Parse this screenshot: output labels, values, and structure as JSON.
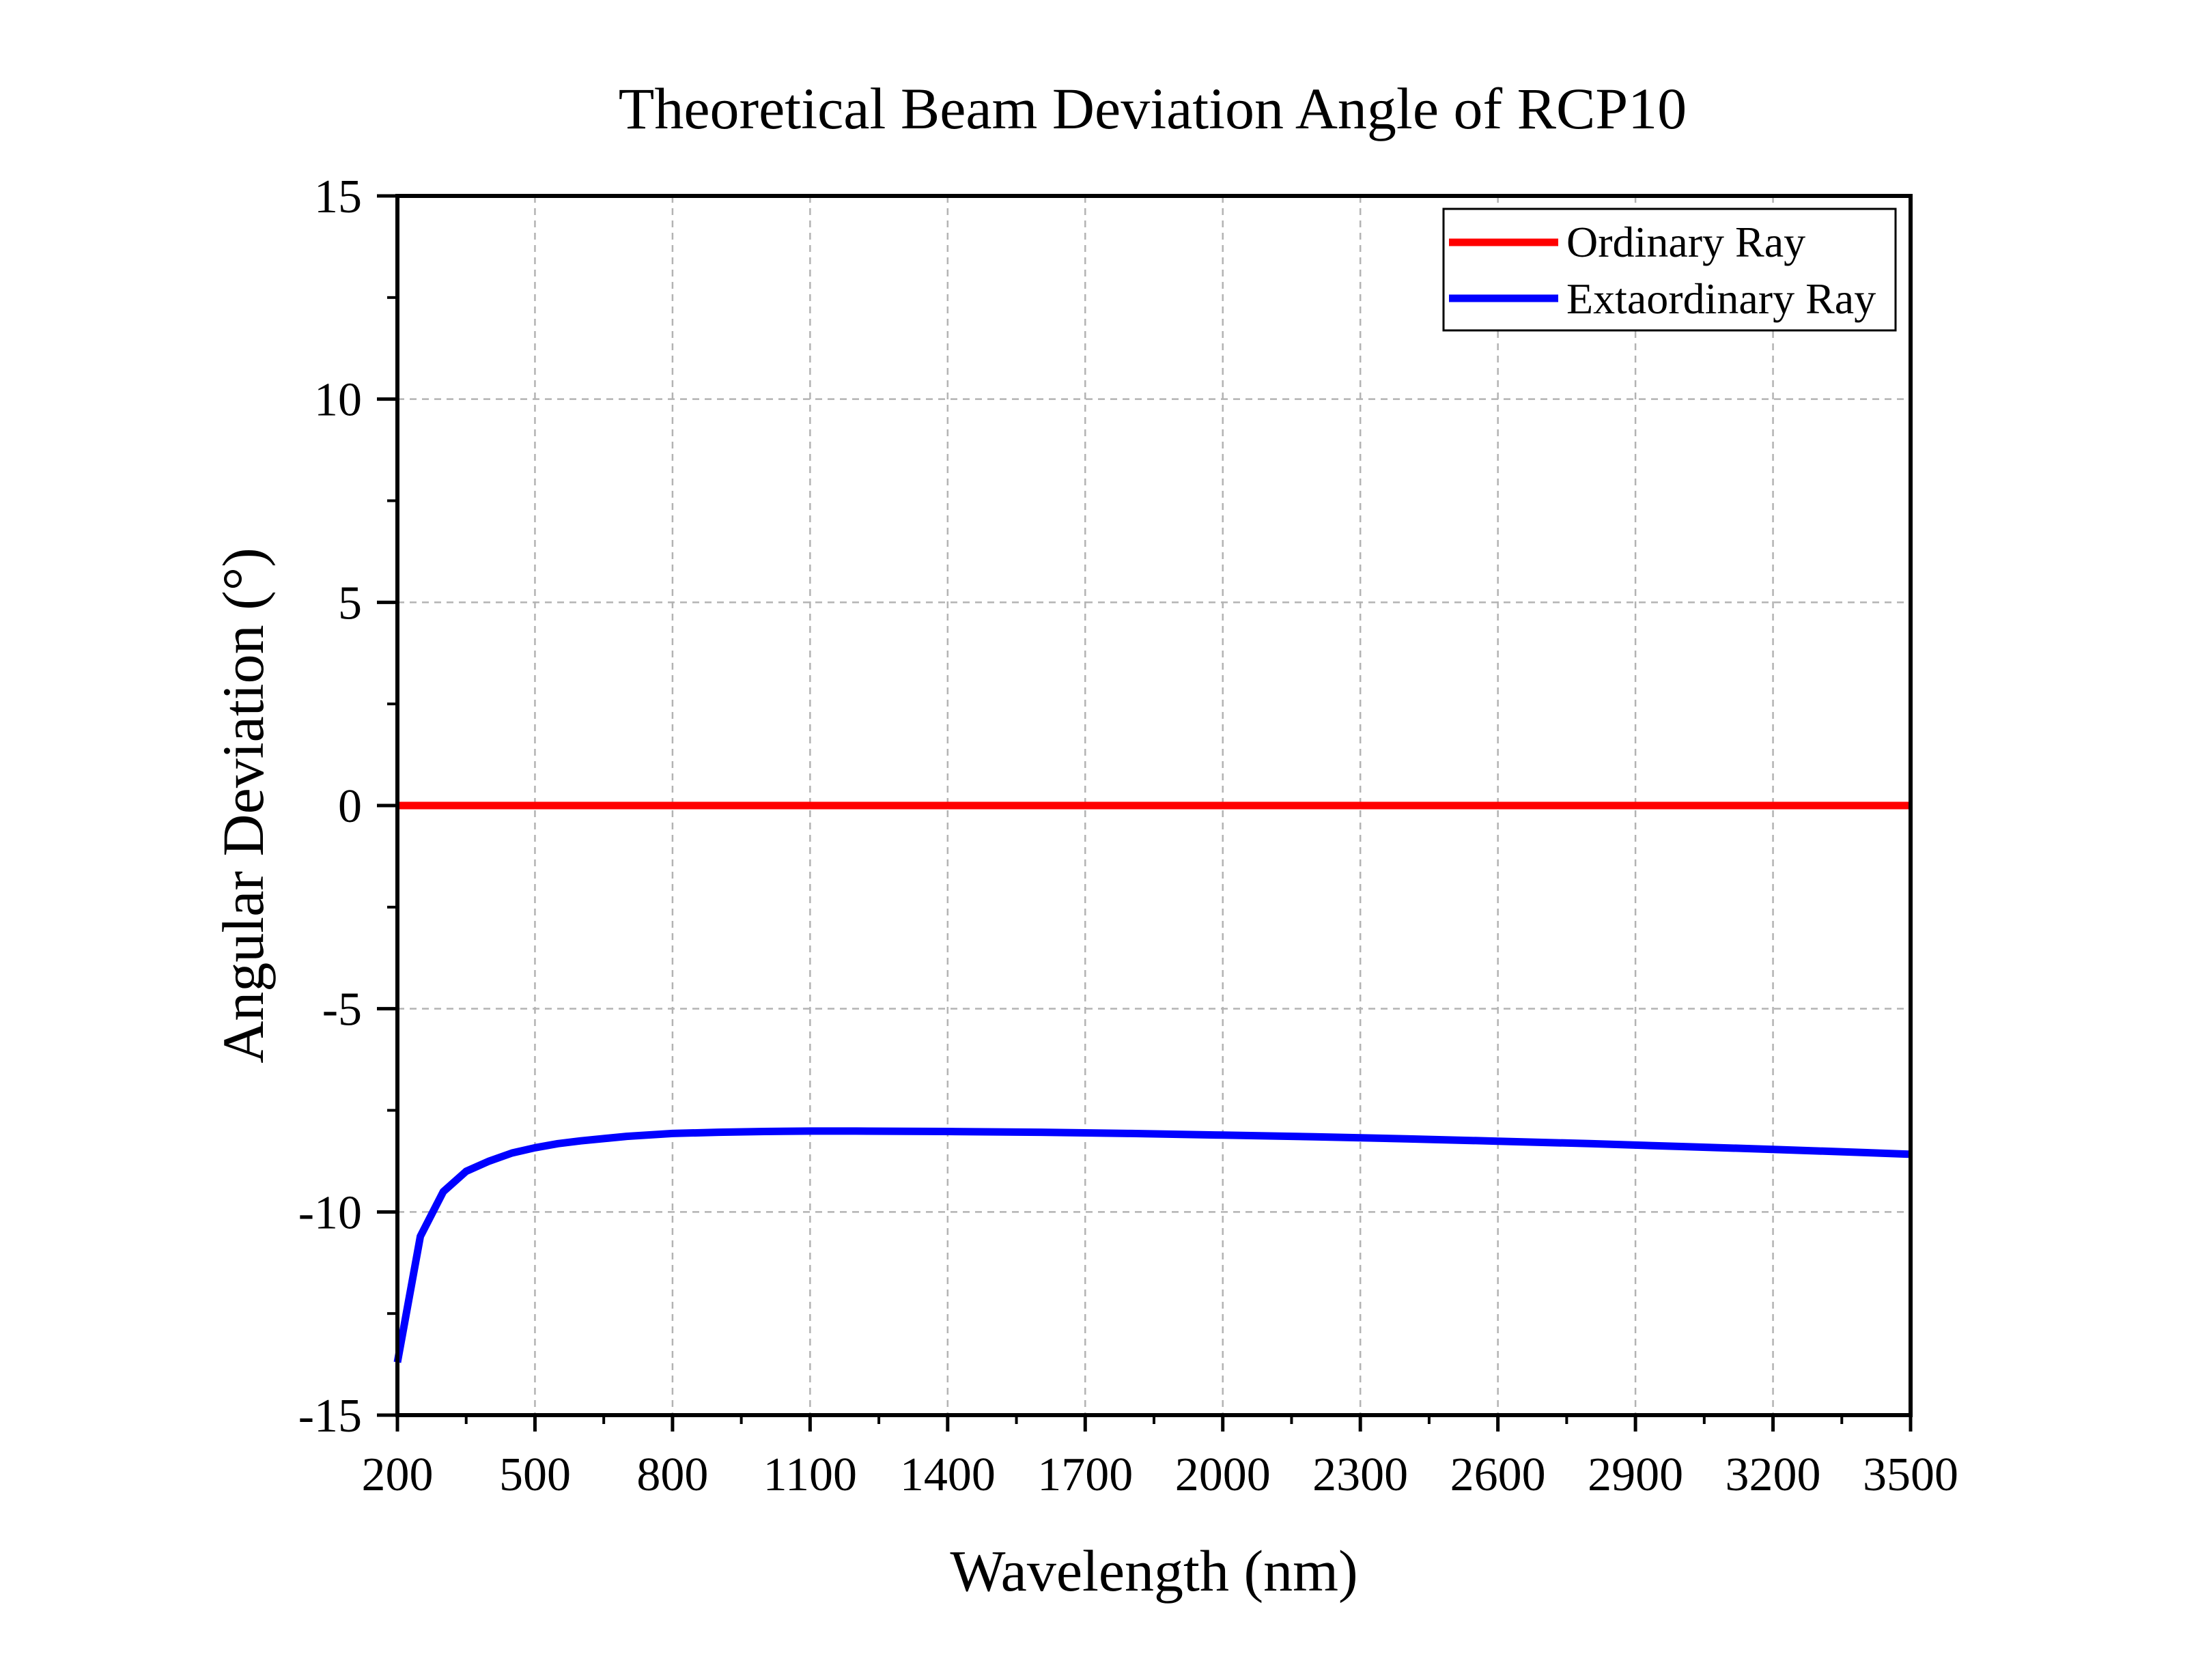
{
  "chart_data": {
    "type": "line",
    "title": "Theoretical Beam Deviation Angle of RCP10",
    "xlabel": "Wavelength (nm)",
    "ylabel": "Angular Deviation (°)",
    "xlim": [
      200,
      3500
    ],
    "ylim": [
      -15,
      15
    ],
    "x_ticks": [
      200,
      500,
      800,
      1100,
      1400,
      1700,
      2000,
      2300,
      2600,
      2900,
      3200,
      3500
    ],
    "y_ticks": [
      15,
      10,
      5,
      0,
      -5,
      -10,
      -15
    ],
    "y_tick_labels": [
      "15",
      "10",
      "5",
      "0",
      "-5",
      "-10",
      "-15"
    ],
    "grid": true,
    "legend_position": "top-right",
    "series": [
      {
        "name": "Ordinary Ray",
        "color": "#ff0000",
        "x": [
          200,
          3500
        ],
        "y": [
          0,
          0
        ]
      },
      {
        "name": "Extaordinary Ray",
        "color": "#0000ff",
        "x": [
          200,
          250,
          300,
          350,
          400,
          450,
          500,
          550,
          600,
          700,
          800,
          900,
          1000,
          1100,
          1200,
          1400,
          1600,
          1800,
          2000,
          2200,
          2400,
          2600,
          2800,
          3000,
          3200,
          3400,
          3500
        ],
        "y": [
          -13.7,
          -10.6,
          -9.5,
          -9.0,
          -8.75,
          -8.55,
          -8.42,
          -8.32,
          -8.25,
          -8.14,
          -8.07,
          -8.04,
          -8.02,
          -8.01,
          -8.01,
          -8.02,
          -8.04,
          -8.07,
          -8.11,
          -8.15,
          -8.2,
          -8.26,
          -8.32,
          -8.39,
          -8.46,
          -8.54,
          -8.58
        ]
      }
    ]
  }
}
